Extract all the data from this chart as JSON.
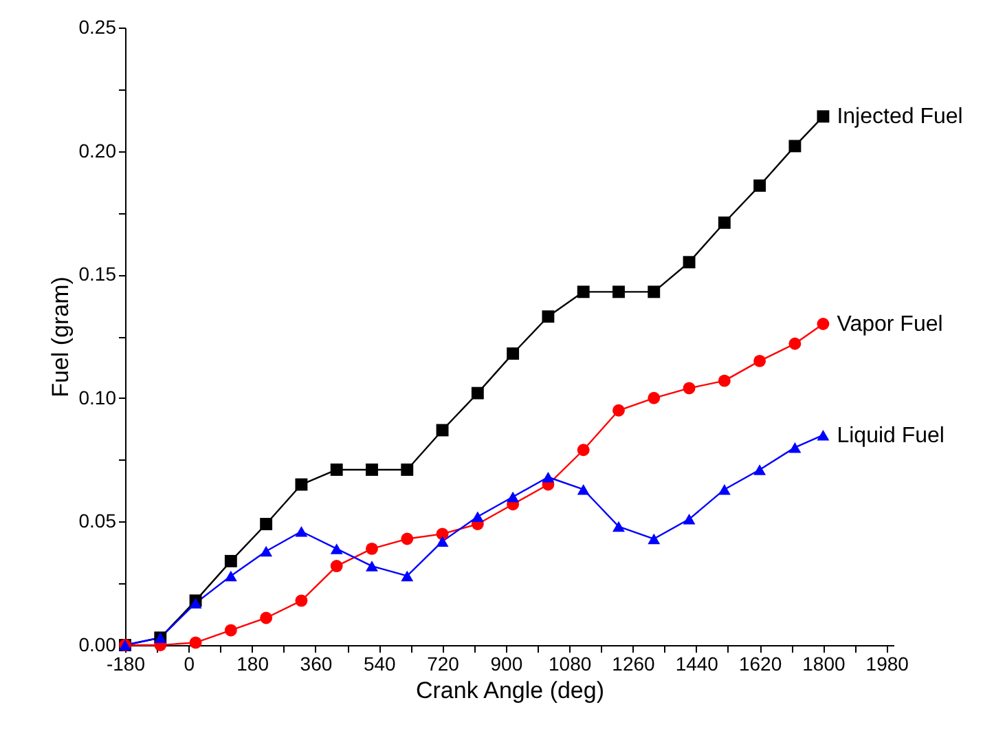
{
  "chart_data": {
    "type": "line",
    "xlabel": "Crank Angle (deg)",
    "ylabel": "Fuel (gram)",
    "x": [
      -180,
      -80,
      20,
      120,
      220,
      320,
      420,
      520,
      620,
      720,
      820,
      920,
      1020,
      1120,
      1220,
      1320,
      1420,
      1520,
      1620,
      1720,
      1800
    ],
    "series": [
      {
        "name": "Injected Fuel",
        "color": "#000000",
        "marker": "square",
        "values": [
          0,
          0.003,
          0.018,
          0.034,
          0.049,
          0.065,
          0.071,
          0.071,
          0.071,
          0.087,
          0.102,
          0.118,
          0.133,
          0.143,
          0.143,
          0.143,
          0.155,
          0.171,
          0.186,
          0.202,
          0.214
        ]
      },
      {
        "name": "Vapor Fuel",
        "color": "#ff0000",
        "marker": "circle",
        "values": [
          0,
          0,
          0.001,
          0.006,
          0.011,
          0.018,
          0.032,
          0.039,
          0.043,
          0.045,
          0.049,
          0.057,
          0.065,
          0.079,
          0.095,
          0.1,
          0.104,
          0.107,
          0.115,
          0.122,
          0.13
        ]
      },
      {
        "name": "Liquid Fuel",
        "color": "#0000ff",
        "marker": "triangle",
        "values": [
          0,
          0.003,
          0.017,
          0.028,
          0.038,
          0.046,
          0.039,
          0.032,
          0.028,
          0.042,
          0.052,
          0.06,
          0.068,
          0.063,
          0.048,
          0.043,
          0.051,
          0.063,
          0.071,
          0.08,
          0.085
        ]
      }
    ],
    "xlim": [
      -180,
      2000
    ],
    "xticks": [
      -180,
      {
        "value": -90,
        "label": null
      },
      0,
      {
        "value": 90,
        "label": null
      },
      180,
      {
        "value": 270,
        "label": null
      },
      360,
      {
        "value": 450,
        "label": null
      },
      540,
      {
        "value": 630,
        "label": null
      },
      720,
      {
        "value": 810,
        "label": null
      },
      900,
      {
        "value": 990,
        "label": null
      },
      1080,
      {
        "value": 1170,
        "label": null
      },
      1260,
      {
        "value": 1350,
        "label": null
      },
      1440,
      {
        "value": 1530,
        "label": null
      },
      1620,
      {
        "value": 1710,
        "label": null
      },
      1800,
      {
        "value": 1890,
        "label": null
      },
      1980
    ],
    "ylim": [
      0,
      0.25
    ],
    "yticks": [
      {
        "value": 0,
        "label": "0.00"
      },
      {
        "value": 0.025,
        "label": null
      },
      {
        "value": 0.05,
        "label": "0.05"
      },
      {
        "value": 0.075,
        "label": null
      },
      {
        "value": 0.1,
        "label": "0.10"
      },
      {
        "value": 0.125,
        "label": null
      },
      {
        "value": 0.15,
        "label": "0.15"
      },
      {
        "value": 0.175,
        "label": null
      },
      {
        "value": 0.2,
        "label": "0.20"
      },
      {
        "value": 0.225,
        "label": null
      },
      {
        "value": 0.25,
        "label": "0.25"
      }
    ]
  }
}
